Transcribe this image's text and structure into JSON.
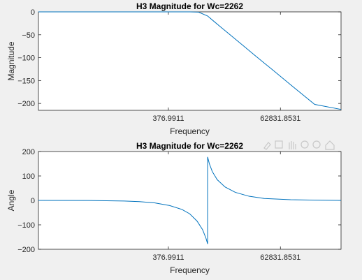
{
  "chart_data": [
    {
      "type": "line",
      "title": "H3 Magnitude for Wc=2262",
      "xlabel": "Frequency",
      "ylabel": "Magnitude",
      "xscale": "log",
      "xlim": [
        1,
        1000000
      ],
      "ylim": [
        -215,
        0
      ],
      "xticks": [
        {
          "value": 376.9911,
          "label": "376.9911"
        },
        {
          "value": 62831.8531,
          "label": "62831.8531"
        }
      ],
      "yticks": [
        0,
        -50,
        -100,
        -150,
        -200
      ],
      "series": [
        {
          "color": "#0072bd",
          "x": [
            1,
            100,
            600,
            1000,
            1500,
            2262,
            3000,
            4000,
            6000,
            10000,
            20000,
            50000,
            100000,
            300000,
            1000000
          ],
          "y": [
            0,
            0,
            0,
            0,
            -0.6,
            -9.0,
            -20.5,
            -32.0,
            -48.1,
            -68.3,
            -95.9,
            -131.7,
            -159.2,
            -202.1,
            -213.0
          ]
        }
      ],
      "grid": false
    },
    {
      "type": "line",
      "title": "H3 Magnitude for Wc=2262",
      "xlabel": "Frequency",
      "ylabel": "Angle",
      "xscale": "log",
      "xlim": [
        1,
        1000000
      ],
      "ylim": [
        -200,
        200
      ],
      "xticks": [
        {
          "value": 376.9911,
          "label": "376.9911"
        },
        {
          "value": 62831.8531,
          "label": "62831.8531"
        }
      ],
      "yticks": [
        200,
        100,
        0,
        -100,
        -200
      ],
      "series": [
        {
          "color": "#0072bd",
          "x": [
            1,
            10,
            50,
            100,
            200,
            400,
            700,
            1000,
            1400,
            1800,
            2100,
            2262,
            2262.1,
            2450,
            2800,
            3500,
            5000,
            8000,
            15000,
            30000,
            100000,
            300000,
            1000000
          ],
          "y": [
            0,
            -0.5,
            -2.5,
            -5,
            -10,
            -21,
            -37,
            -55,
            -85,
            -120,
            -155,
            -178,
            178,
            150,
            118,
            85,
            55,
            33,
            17,
            8,
            3,
            1,
            0
          ]
        }
      ],
      "grid": false
    }
  ]
}
